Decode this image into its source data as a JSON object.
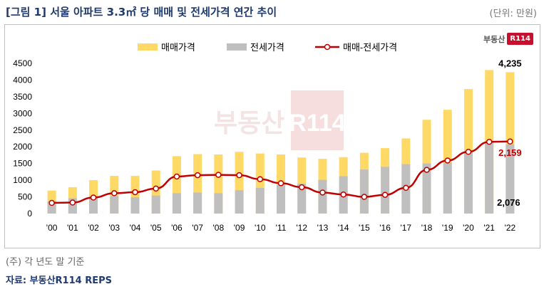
{
  "header": {
    "title": "[그림 1] 서울 아파트 3.3㎡ 당 매매 및 전세가격 연간 추이",
    "unit": "(단위: 만원)"
  },
  "brand": {
    "text": "부동산",
    "box": "R114"
  },
  "watermark": {
    "text": "부동산",
    "box": "R114"
  },
  "footer": {
    "note": "(주) 각 년도 말 기준",
    "source": "자료: 부동산R114 REPS"
  },
  "colors": {
    "sale": "#ffd966",
    "jeonse": "#bfbfbf",
    "gap_line": "#c00000",
    "gap_marker_fill": "#ffffff",
    "gap_label": "#c00000"
  },
  "chart_data": {
    "type": "bar",
    "categories": [
      "'00",
      "'01",
      "'02",
      "'03",
      "'04",
      "'05",
      "'06",
      "'07",
      "'08",
      "'09",
      "'10",
      "'11",
      "'12",
      "'13",
      "'14",
      "'15",
      "'16",
      "'17",
      "'18",
      "'19",
      "'20",
      "'21",
      "'22"
    ],
    "ylim": [
      0,
      4500
    ],
    "yticks": [
      0,
      500,
      1000,
      1500,
      2000,
      2500,
      3000,
      3500,
      4000,
      4500
    ],
    "legend_position": "top",
    "series": [
      {
        "name": "매매가격",
        "type": "bar",
        "values": [
          690,
          790,
          1000,
          1130,
          1130,
          1290,
          1720,
          1780,
          1770,
          1850,
          1800,
          1770,
          1680,
          1640,
          1690,
          1820,
          1960,
          2250,
          2810,
          3110,
          3730,
          4300,
          4235
        ]
      },
      {
        "name": "전세가격",
        "type": "bar",
        "values": [
          370,
          460,
          520,
          520,
          490,
          540,
          610,
          630,
          610,
          700,
          770,
          860,
          890,
          1010,
          1120,
          1320,
          1400,
          1480,
          1500,
          1520,
          1880,
          2150,
          2076
        ]
      },
      {
        "name": "매매-전세가격",
        "type": "line",
        "values": [
          320,
          330,
          480,
          610,
          640,
          750,
          1110,
          1150,
          1160,
          1150,
          1030,
          910,
          790,
          630,
          570,
          500,
          560,
          770,
          1310,
          1590,
          1850,
          2150,
          2159
        ]
      }
    ],
    "data_labels": {
      "sale_last": "4,235",
      "gap_last": "2,159",
      "jeonse_last": "2,076"
    }
  }
}
